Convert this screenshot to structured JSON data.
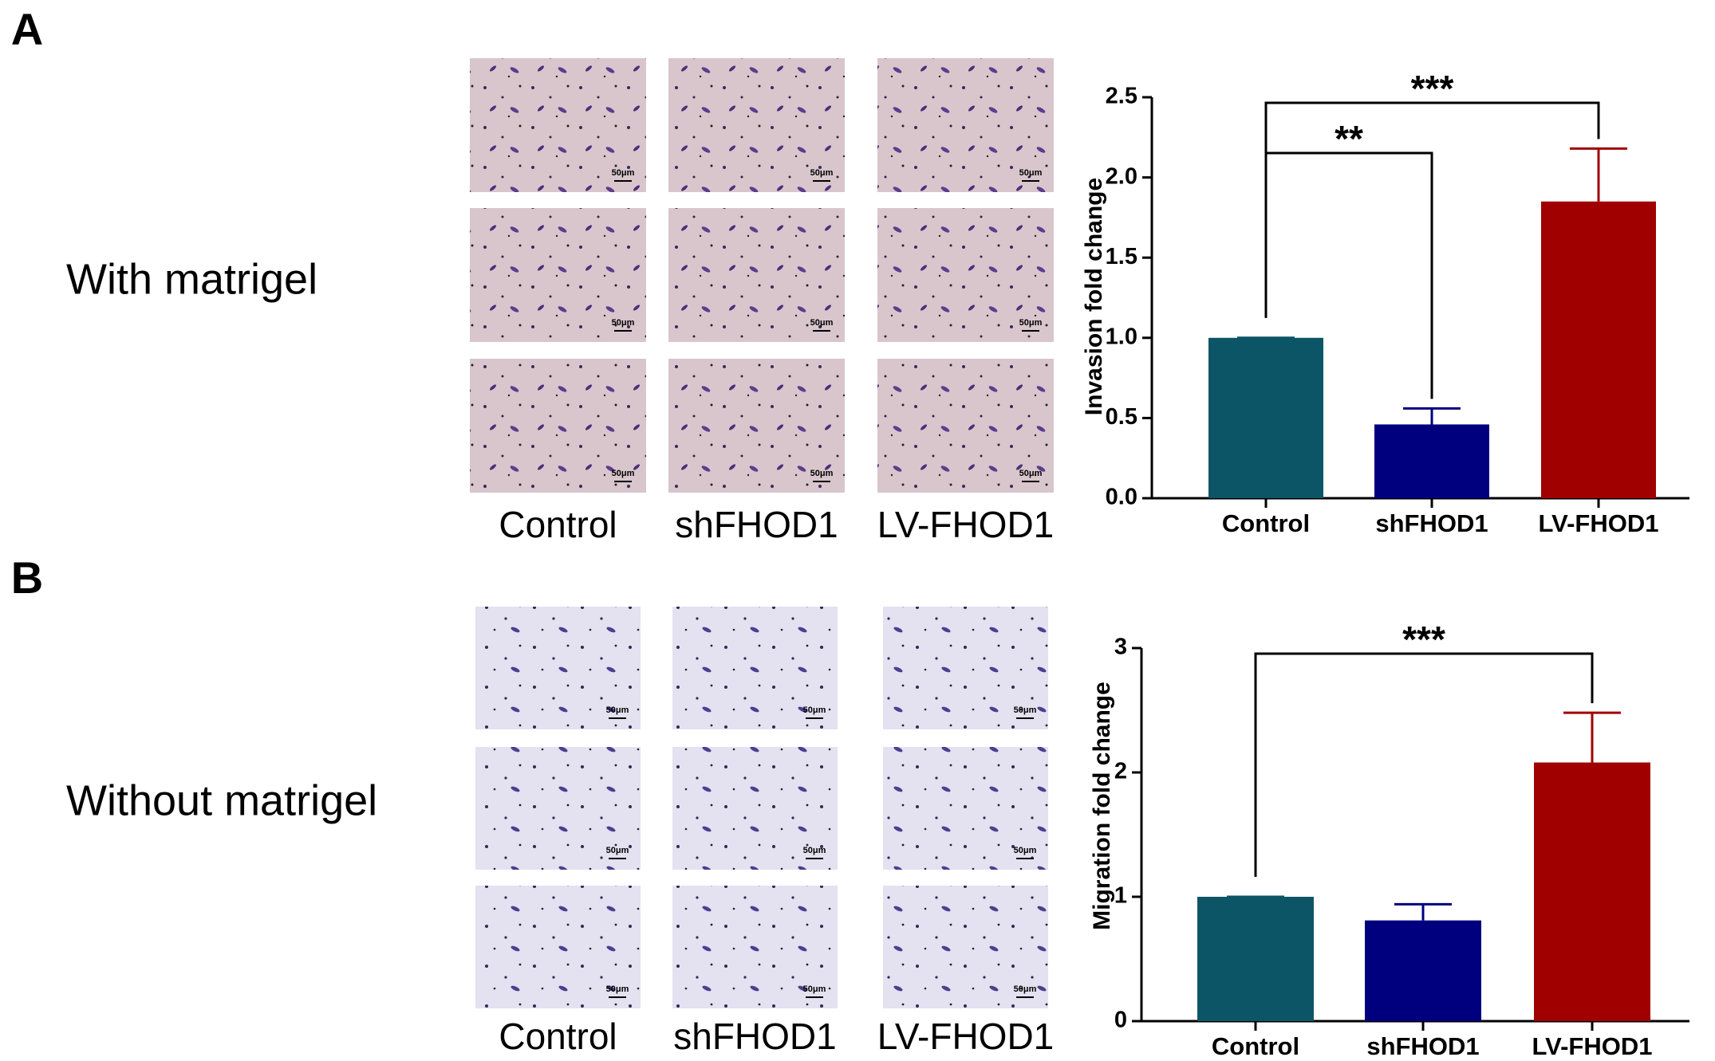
{
  "panels": [
    {
      "label": "A",
      "condition": "With matrigel",
      "image_labels": [
        "Control",
        "shFHOD1",
        "LV-FHOD1"
      ],
      "scale_bar": "50μm"
    },
    {
      "label": "B",
      "condition": "Without matrigel",
      "image_labels": [
        "Control",
        "shFHOD1",
        "LV-FHOD1"
      ],
      "scale_bar": "50μm"
    }
  ],
  "chart_data": [
    {
      "type": "bar",
      "y_label": "Invasion fold change",
      "categories": [
        "Control",
        "shFHOD1",
        "LV-FHOD1"
      ],
      "values": [
        1.0,
        0.46,
        1.85
      ],
      "errors": [
        0,
        0.1,
        0.33
      ],
      "colors": [
        "#0c5567",
        "#00007f",
        "#a10000"
      ],
      "ylim": [
        0,
        2.5
      ],
      "yticks": [
        {
          "value": 0,
          "label": "0.0"
        },
        0.5,
        {
          "value": 1,
          "label": "1.0"
        },
        1.5,
        {
          "value": 2,
          "label": "2.0"
        },
        2.5
      ],
      "annotations": [
        {
          "from": 0,
          "to": 2,
          "text": "***"
        },
        {
          "from": 0,
          "to": 1,
          "text": "**"
        }
      ]
    },
    {
      "type": "bar",
      "y_label": "Migration fold change",
      "categories": [
        "Control",
        "shFHOD1",
        "LV-FHOD1"
      ],
      "values": [
        1.0,
        0.81,
        2.08
      ],
      "errors": [
        0,
        0.13,
        0.4
      ],
      "colors": [
        "#0c5567",
        "#00007f",
        "#a10000"
      ],
      "ylim": [
        0,
        3
      ],
      "yticks": [
        0,
        1,
        2,
        3
      ],
      "annotations": [
        {
          "from": 0,
          "to": 2,
          "text": "***"
        }
      ]
    }
  ]
}
